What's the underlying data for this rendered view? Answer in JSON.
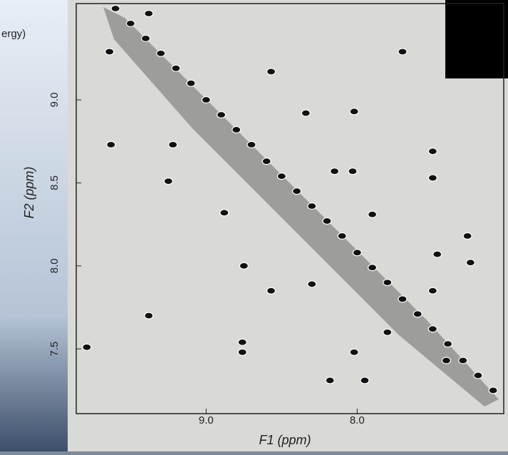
{
  "chart_data": {
    "type": "scatter",
    "annotation": "ergy)",
    "xlabel": "F1 (ppm)",
    "ylabel": "F2 (ppm)",
    "xlim": [
      9.86,
      7.03
    ],
    "ylim": [
      7.11,
      9.58
    ],
    "xticks": [
      {
        "value": 9,
        "label": "9.0"
      },
      {
        "value": 8,
        "label": "8.0"
      }
    ],
    "yticks": [
      {
        "value": 9,
        "label": "9.0"
      },
      {
        "value": 8.5,
        "label": "8.5"
      },
      {
        "value": 8,
        "label": "8.0"
      },
      {
        "value": 7.5,
        "label": "7.5"
      }
    ],
    "color": "#111111",
    "x": [
      9.38,
      9.64,
      7.7,
      8.57,
      8.34,
      8.02,
      9.63,
      9.22,
      7.5,
      8.15,
      8.03,
      7.5,
      9.25,
      7.9,
      8.88,
      7.27,
      7.47,
      7.25,
      8.75,
      8.3,
      8.57,
      7.5,
      9.38,
      8.76,
      9.79,
      8.02,
      7.8,
      8.18,
      7.95,
      8.76,
      7.41,
      9.6,
      9.5,
      9.4,
      9.3,
      9.2,
      9.1,
      9.0,
      8.9,
      8.8,
      8.7,
      8.6,
      8.5,
      8.4,
      8.3,
      8.2,
      8.1,
      8.0,
      7.9,
      7.8,
      7.7,
      7.6,
      7.5,
      7.4,
      7.3,
      7.2,
      7.1
    ],
    "values": [
      9.52,
      9.29,
      9.29,
      9.17,
      8.92,
      8.93,
      8.73,
      8.73,
      8.69,
      8.57,
      8.57,
      8.53,
      8.51,
      8.31,
      8.32,
      8.18,
      8.07,
      8.02,
      8.0,
      7.89,
      7.85,
      7.85,
      7.7,
      7.54,
      7.51,
      7.48,
      7.6,
      7.31,
      7.31,
      7.48,
      7.43,
      9.55,
      9.46,
      9.37,
      9.28,
      9.19,
      9.1,
      9.0,
      8.91,
      8.82,
      8.73,
      8.63,
      8.54,
      8.45,
      8.36,
      8.27,
      8.18,
      8.08,
      7.99,
      7.9,
      7.8,
      7.71,
      7.62,
      7.53,
      7.43,
      7.34,
      7.25
    ]
  }
}
